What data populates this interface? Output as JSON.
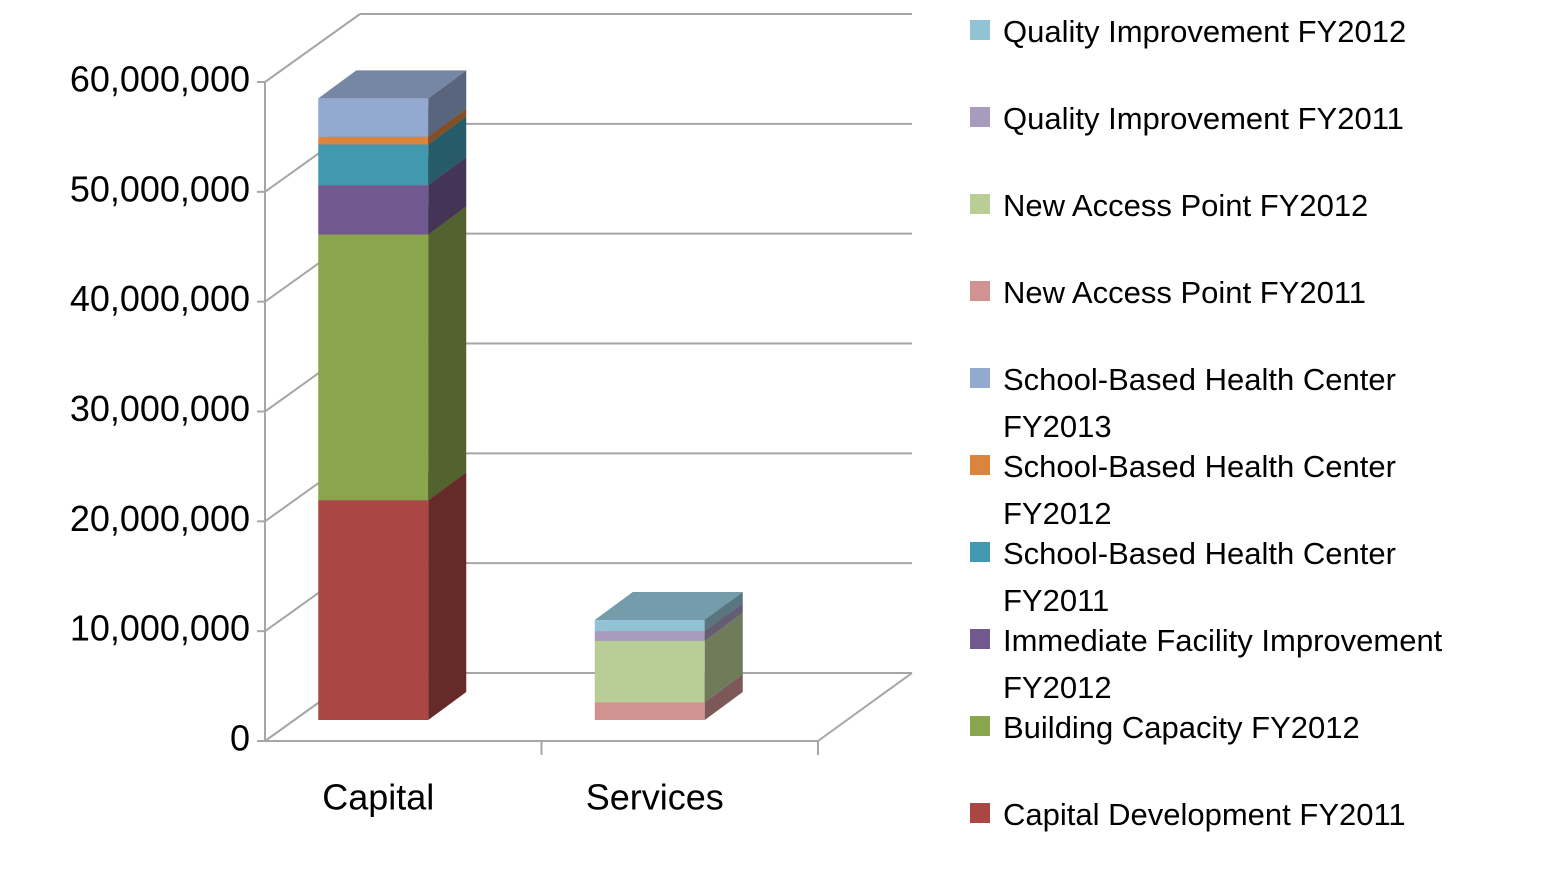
{
  "chart_data": {
    "type": "bar3d_stacked",
    "categories": [
      "Capital",
      "Services"
    ],
    "series": [
      {
        "name": "Capital Development FY2011",
        "color": "#aa4643",
        "values": [
          20000000,
          0
        ]
      },
      {
        "name": "Building Capacity FY2012",
        "color": "#89a54e",
        "values": [
          24200000,
          0
        ]
      },
      {
        "name": "Immediate Facility Improvement FY2012",
        "color": "#71588f",
        "values": [
          4500000,
          0
        ]
      },
      {
        "name": "School-Based Health Center FY2011",
        "color": "#4198af",
        "values": [
          3700000,
          0
        ]
      },
      {
        "name": "School-Based Health Center FY2012",
        "color": "#db843d",
        "values": [
          700000,
          0
        ]
      },
      {
        "name": "School-Based Health Center FY2013",
        "color": "#93a9cf",
        "values": [
          3500000,
          0
        ]
      },
      {
        "name": "New Access Point FY2011",
        "color": "#d19392",
        "values": [
          0,
          1600000
        ]
      },
      {
        "name": "New Access Point FY2012",
        "color": "#b9cd96",
        "values": [
          0,
          5600000
        ]
      },
      {
        "name": "Quality Improvement FY2011",
        "color": "#a99bbd",
        "values": [
          0,
          900000
        ]
      },
      {
        "name": "Quality Improvement FY2012",
        "color": "#92c3d5",
        "values": [
          0,
          1000000
        ]
      }
    ],
    "ylim": [
      0,
      60000000
    ],
    "yticks": [
      0,
      {
        "value": 10000000,
        "label": "10,000,000"
      },
      {
        "value": 20000000,
        "label": "20,000,000"
      },
      {
        "value": 30000000,
        "label": "30,000,000"
      },
      {
        "value": 40000000,
        "label": "40,000,000"
      },
      {
        "value": 50000000,
        "label": "50,000,000"
      },
      {
        "value": 60000000,
        "label": "60,000,000"
      }
    ],
    "grid": true
  }
}
